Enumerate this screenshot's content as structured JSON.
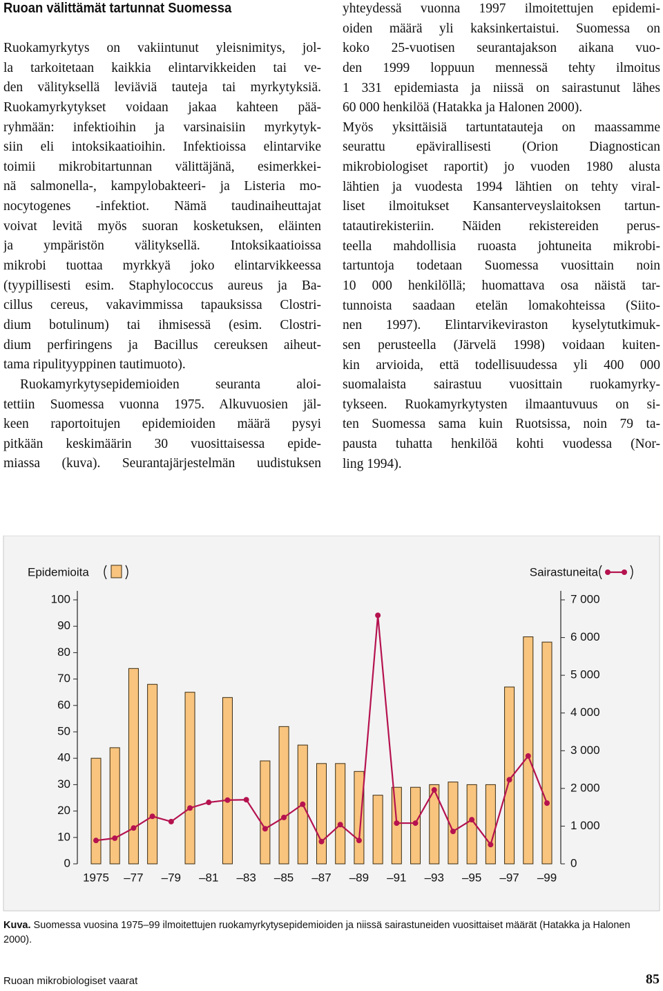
{
  "header": {
    "title": "Ruoan välittämät tartunnat Suomessa"
  },
  "left_column": {
    "paragraphs": [
      [
        "Ruokamyrkytys on vakiintunut yleisnimitys, jol-",
        "la tarkoitetaan kaikkia elintarvikkeiden tai ve-",
        "den välityksellä leviäviä tauteja tai myrkytyksiä.",
        "Ruokamyrkytykset voidaan jakaa kahteen pää-",
        "ryhmään: infektioihin ja varsinaisiin myrkytyk-",
        "siin eli intoksikaatioihin. Infektioissa elintarvike",
        "toimii mikrobitartunnan välittäjänä, esimerkkei-",
        "nä salmonella-, kampylobakteeri- ja Listeria mo-",
        "nocytogenes -infektiot. Nämä taudinaiheuttajat",
        "voivat levitä myös suoran kosketuksen, eläinten",
        "ja ympäristön välityksellä. Intoksikaatioissa",
        "mikrobi tuottaa myrkkyä joko elintarvikkeessa",
        "(tyypillisesti esim. Staphylococcus aureus ja Ba-",
        "cillus cereus, vakavimmissa tapauksissa Clostri-",
        "dium botulinum) tai ihmisessä (esim. Clostri-",
        "dium perfiringens ja Bacillus cereuksen aiheut-",
        "tama ripulityyppinen tautimuoto)."
      ],
      [
        "Ruokamyrkytysepidemioiden seuranta aloi-",
        "tettiin Suomessa vuonna 1975. Alkuvuosien jäl-",
        "keen raportoitujen epidemioiden määrä pysyi",
        "pitkään keskimäärin 30 vuosittaisessa epide-",
        "miassa (kuva). Seurantajärjestelmän uudistuksen"
      ]
    ]
  },
  "right_column": {
    "paragraphs": [
      [
        "yhteydessä vuonna 1997 ilmoitettujen epidemi-",
        "oiden määrä yli kaksinkertaistui. Suomessa on",
        "koko 25-vuotisen seurantajakson aikana vuo-",
        "den 1999 loppuun mennessä tehty ilmoitus",
        "1 331 epidemiasta ja niissä on sairastunut lähes",
        "60 000 henkilöä (Hatakka ja Halonen 2000)."
      ],
      [
        "Myös yksittäisiä tartuntatauteja on maassamme",
        "seurattu epävirallisesti (Orion Diagnostican",
        "mikrobiologiset raportit) jo vuoden 1980 alusta",
        "lähtien ja vuodesta 1994 lähtien on tehty viral-",
        "liset ilmoitukset Kansanterveyslaitoksen tartun-",
        "tatautirekisteriin. Näiden rekistereiden perus-",
        "teella mahdollisia ruoasta johtuneita mikrobi-",
        "tartuntoja todetaan Suomessa vuosittain noin",
        "10 000 henkilöllä; huomattava osa näistä tar-",
        "tunnoista saadaan etelän lomakohteissa (Siito-",
        "nen 1997). Elintarvikeviraston kyselytutkimuk-",
        "sen perusteella (Järvelä 1998) voidaan kuiten-",
        "kin arvioida, että todellisuudessa yli 400 000",
        "suomalaista sairastuu vuosittain ruokamyrky-",
        "tykseen. Ruokamyrkytysten ilmaantuvuus on si-",
        "ten Suomessa sama kuin Ruotsissa, noin 79 ta-",
        "pausta tuhatta henkilöä kohti vuodessa (Nor-",
        "ling 1994)."
      ]
    ]
  },
  "chart_data": {
    "type": "combo",
    "categories": [
      "1975",
      null,
      "–77",
      null,
      "–79",
      null,
      "–81",
      null,
      "–83",
      null,
      "–85",
      null,
      "–87",
      null,
      "–89",
      null,
      "–91",
      null,
      "–93",
      null,
      "–95",
      null,
      "–97",
      null,
      "–99"
    ],
    "series": [
      {
        "name": "Epidemioita",
        "type": "bar",
        "color": "#f8c47e",
        "values": [
          40,
          44,
          74,
          68,
          null,
          65,
          null,
          63,
          null,
          39,
          52,
          45,
          38,
          38,
          35,
          26,
          29,
          29,
          30,
          31,
          30,
          30,
          67,
          86,
          84
        ]
      },
      {
        "name": "Sairastuneita",
        "type": "line",
        "axis": "y2",
        "color": "#b5124f",
        "values": [
          620,
          680,
          950,
          1260,
          1120,
          1480,
          1630,
          1690,
          1700,
          930,
          1230,
          1580,
          590,
          1040,
          620,
          6590,
          1080,
          1080,
          1960,
          860,
          1170,
          510,
          2230,
          2860,
          1610
        ]
      }
    ],
    "ylim": [
      0,
      100
    ],
    "yticks": [
      0,
      10,
      20,
      30,
      40,
      50,
      60,
      70,
      80,
      90,
      100
    ],
    "y2lim": [
      0,
      7000
    ],
    "y2ticks": [
      0,
      {
        "value": 1000,
        "label": "1 000"
      },
      {
        "value": 2000,
        "label": "2 000"
      },
      {
        "value": 3000,
        "label": "3 000"
      },
      {
        "value": 4000,
        "label": "4 000"
      },
      {
        "value": 5000,
        "label": "5 000"
      },
      {
        "value": 6000,
        "label": "6 000"
      },
      {
        "value": 7000,
        "label": "7 000"
      }
    ]
  },
  "caption": {
    "label": "Kuva.",
    "text": "Suomessa vuosina 1975–99 ilmoitettujen ruokamyrkytysepidemioiden ja niissä sairastuneiden vuosittaiset määrät (Hatakka ja Halonen 2000)."
  },
  "footer": {
    "left": "Ruoan mikrobiologiset vaarat",
    "page": "85"
  }
}
